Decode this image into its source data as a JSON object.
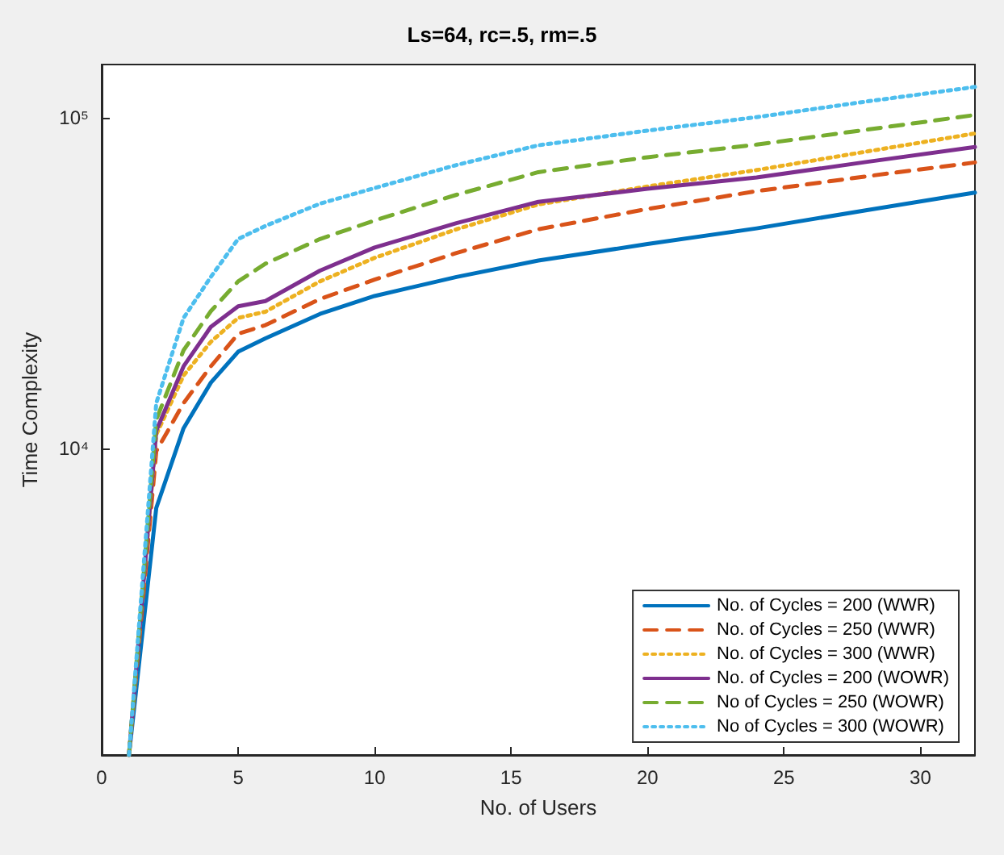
{
  "chart_data": {
    "type": "line",
    "title": "Ls=64, rc=.5, rm=.5",
    "xlabel": "No. of Users",
    "ylabel": "Time Complexity",
    "x": [
      1,
      2,
      3,
      4,
      5,
      6,
      8,
      10,
      13,
      16,
      20,
      24,
      28,
      32
    ],
    "series": [
      {
        "name": "No. of Cycles = 200 (WWR)",
        "color": "#0072bd",
        "line_style": "solid",
        "values": [
          1180,
          6600,
          11500,
          15800,
          19600,
          21500,
          25500,
          28900,
          33000,
          37000,
          41500,
          46300,
          52500,
          59400
        ]
      },
      {
        "name": "No. of Cycles = 250 (WWR)",
        "color": "#d95319",
        "line_style": "dashed",
        "values": [
          1180,
          9800,
          13700,
          17700,
          22200,
          23600,
          28300,
          32400,
          39000,
          46000,
          53000,
          60000,
          66500,
          73300
        ]
      },
      {
        "name": "No. of Cycles = 300 (WWR)",
        "color": "#edb120",
        "line_style": "dotted",
        "values": [
          1180,
          11000,
          16600,
          21000,
          24800,
          25900,
          32000,
          37700,
          46000,
          54700,
          62000,
          69500,
          79000,
          89700
        ]
      },
      {
        "name": "No. of Cycles = 200 (WOWR)",
        "color": "#7e2f8e",
        "line_style": "solid",
        "values": [
          1180,
          11300,
          17700,
          23300,
          26900,
          27900,
          34500,
          40500,
          48000,
          55700,
          61000,
          66000,
          73500,
          81600
        ]
      },
      {
        "name": "No of Cycles = 250 (WOWR)",
        "color": "#77ac30",
        "line_style": "dashed",
        "values": [
          1180,
          12200,
          19800,
          26000,
          32000,
          36200,
          43000,
          48900,
          58500,
          68500,
          76000,
          83000,
          92000,
          102000
        ]
      },
      {
        "name": "No of Cycles = 300 (WOWR)",
        "color": "#4dbeee",
        "line_style": "dotted",
        "values": [
          1180,
          13700,
          24800,
          33000,
          43000,
          47100,
          55000,
          61300,
          72000,
          82600,
          91500,
          100500,
          112000,
          124000
        ]
      }
    ],
    "xlim": [
      0,
      32
    ],
    "xticks": [
      0,
      5,
      10,
      15,
      20,
      25,
      30
    ],
    "ylim": [
      1180,
      145000
    ],
    "yticks": [
      {
        "value": 10000,
        "label": "10⁴"
      },
      {
        "value": 100000,
        "label": "10⁵"
      }
    ],
    "log": "y",
    "grid": false,
    "legend": "bottom right",
    "marker": "none"
  }
}
